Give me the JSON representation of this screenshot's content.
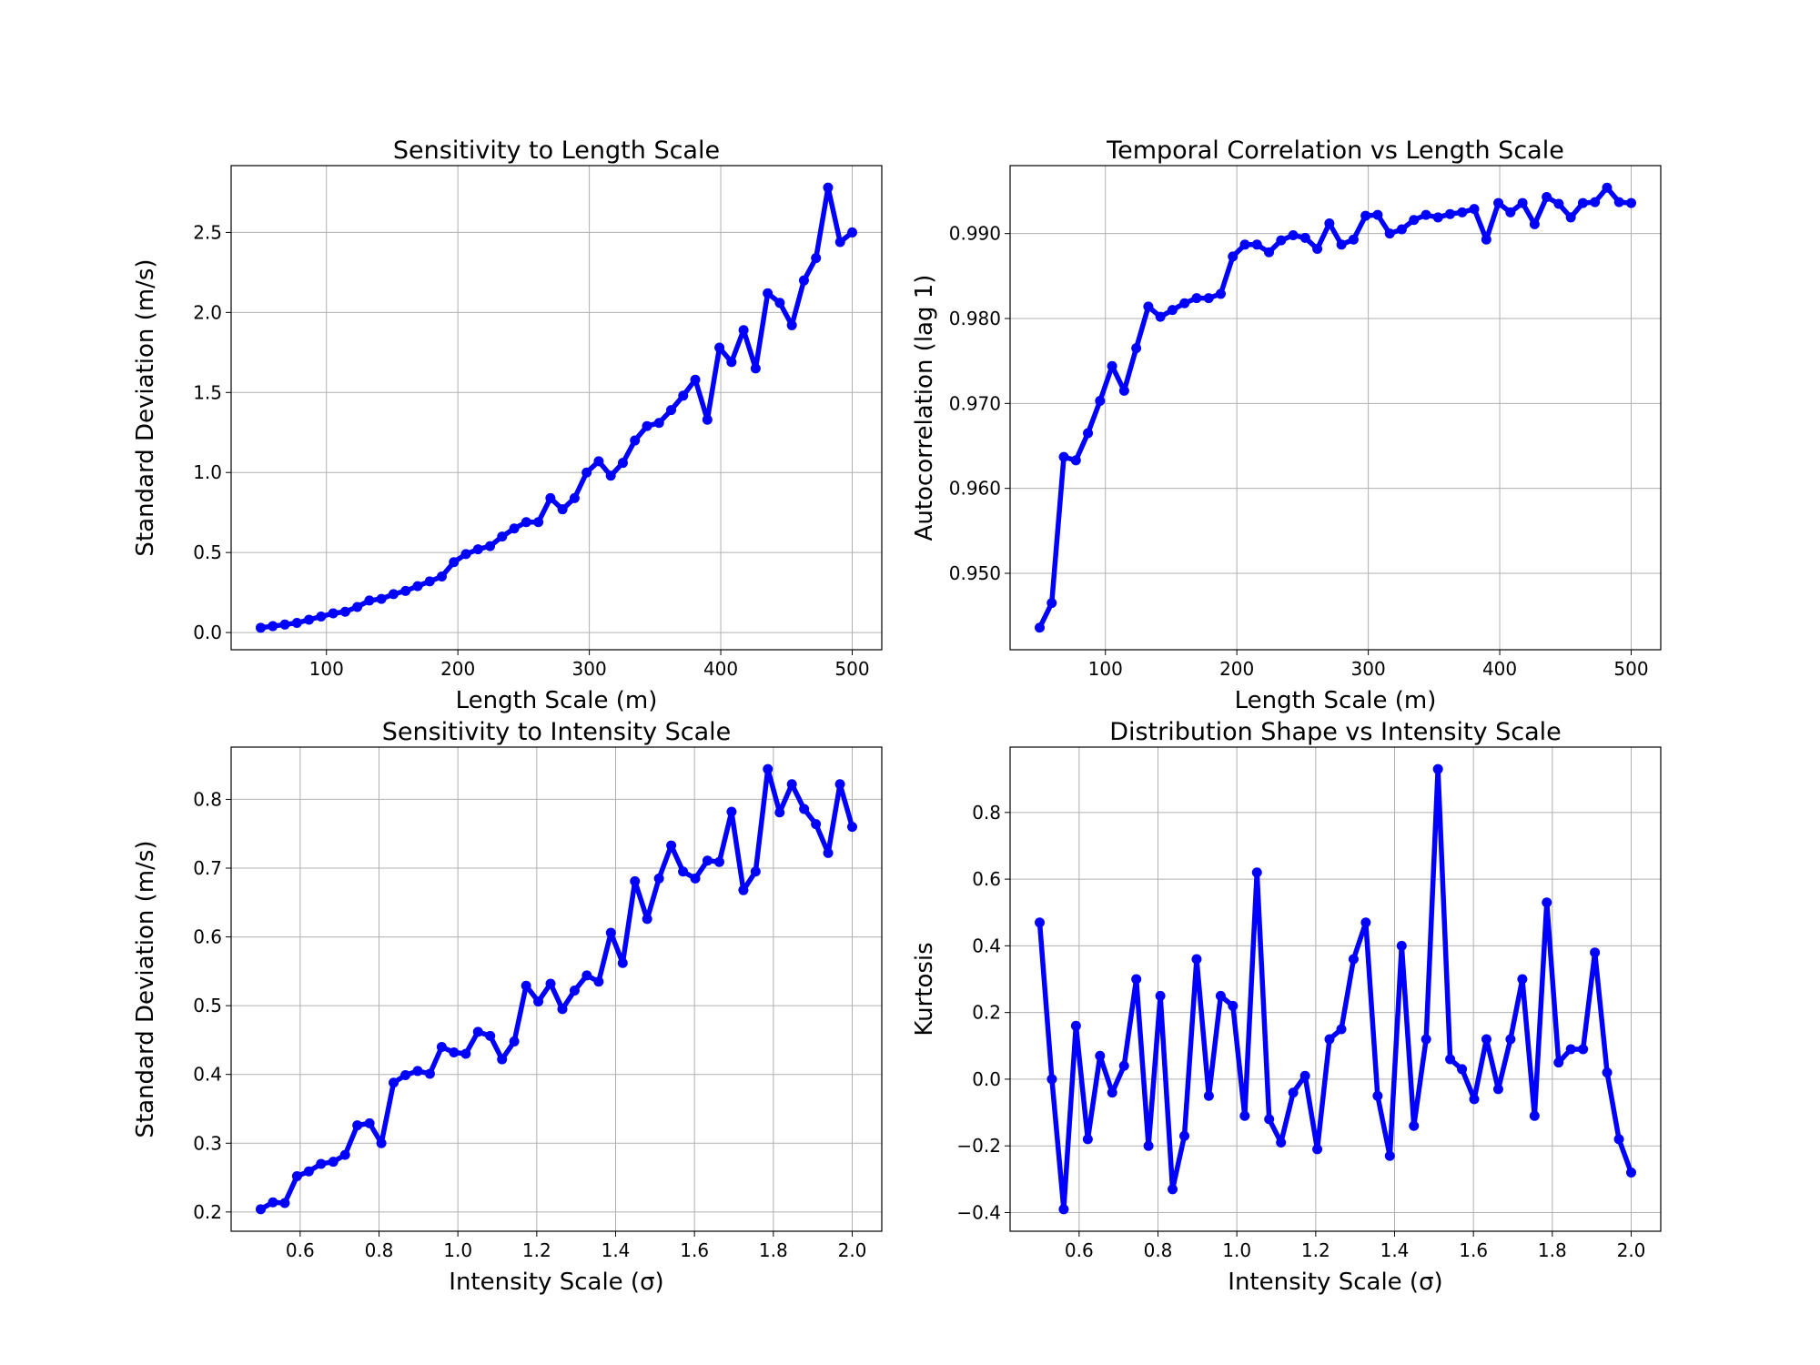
{
  "chart_data": [
    {
      "type": "line",
      "title": "Sensitivity to Length Scale",
      "xlabel": "Length Scale (m)",
      "ylabel": "Standard Deviation (m/s)",
      "color": "#0000ff",
      "grid": true,
      "x": [
        50,
        59.18,
        68.37,
        77.55,
        86.73,
        95.92,
        105.1,
        114.29,
        123.47,
        132.65,
        141.84,
        151.02,
        160.2,
        169.39,
        178.57,
        187.76,
        196.94,
        206.12,
        215.31,
        224.49,
        233.67,
        242.86,
        252.04,
        261.22,
        270.41,
        279.59,
        288.78,
        297.96,
        307.14,
        316.33,
        325.51,
        334.69,
        343.88,
        353.06,
        362.24,
        371.43,
        380.61,
        389.8,
        398.98,
        408.16,
        417.35,
        426.53,
        435.71,
        444.9,
        454.08,
        463.27,
        472.45,
        481.63,
        490.82,
        500
      ],
      "values": [
        0.03,
        0.04,
        0.05,
        0.06,
        0.08,
        0.1,
        0.12,
        0.13,
        0.16,
        0.2,
        0.21,
        0.24,
        0.26,
        0.29,
        0.32,
        0.35,
        0.44,
        0.49,
        0.52,
        0.54,
        0.6,
        0.65,
        0.69,
        0.69,
        0.84,
        0.77,
        0.84,
        1.0,
        1.07,
        0.98,
        1.06,
        1.2,
        1.29,
        1.31,
        1.39,
        1.48,
        1.58,
        1.33,
        1.78,
        1.69,
        1.89,
        1.65,
        2.12,
        2.06,
        1.92,
        2.2,
        2.34,
        2.78,
        2.44,
        2.5
      ],
      "xlim": [
        27.5,
        522.5
      ],
      "ylim": [
        -0.1075,
        2.9175
      ],
      "xticks": [
        100,
        200,
        300,
        400,
        500
      ],
      "yticks": [
        {
          "value": 0,
          "label": "0.0"
        },
        0.5,
        {
          "value": 1,
          "label": "1.0"
        },
        1.5,
        {
          "value": 2,
          "label": "2.0"
        },
        2.5
      ]
    },
    {
      "type": "line",
      "title": "Temporal Correlation vs Length Scale",
      "xlabel": "Length Scale (m)",
      "ylabel": "Autocorrelation (lag 1)",
      "color": "#0000ff",
      "grid": true,
      "x": [
        50,
        59.18,
        68.37,
        77.55,
        86.73,
        95.92,
        105.1,
        114.29,
        123.47,
        132.65,
        141.84,
        151.02,
        160.2,
        169.39,
        178.57,
        187.76,
        196.94,
        206.12,
        215.31,
        224.49,
        233.67,
        242.86,
        252.04,
        261.22,
        270.41,
        279.59,
        288.78,
        297.96,
        307.14,
        316.33,
        325.51,
        334.69,
        343.88,
        353.06,
        362.24,
        371.43,
        380.61,
        389.8,
        398.98,
        408.16,
        417.35,
        426.53,
        435.71,
        444.9,
        454.08,
        463.27,
        472.45,
        481.63,
        490.82,
        500
      ],
      "values": [
        0.9436,
        0.9465,
        0.9637,
        0.9633,
        0.9665,
        0.9703,
        0.9744,
        0.9715,
        0.9765,
        0.9814,
        0.9802,
        0.981,
        0.9818,
        0.9824,
        0.9824,
        0.9829,
        0.9873,
        0.9887,
        0.9887,
        0.9878,
        0.9892,
        0.9898,
        0.9895,
        0.9882,
        0.9912,
        0.9887,
        0.9893,
        0.9921,
        0.9922,
        0.99,
        0.9905,
        0.9916,
        0.9922,
        0.9919,
        0.9923,
        0.9925,
        0.9929,
        0.9893,
        0.9936,
        0.9925,
        0.9936,
        0.9911,
        0.9943,
        0.9935,
        0.9919,
        0.9936,
        0.9937,
        0.9954,
        0.9937,
        0.9936
      ],
      "xlim": [
        27.5,
        522.5
      ],
      "ylim": [
        0.941,
        0.998
      ],
      "xticks": [
        100,
        200,
        300,
        400,
        500
      ],
      "yticks": [
        {
          "value": 0.95,
          "label": "0.950"
        },
        {
          "value": 0.96,
          "label": "0.960"
        },
        {
          "value": 0.97,
          "label": "0.970"
        },
        {
          "value": 0.98,
          "label": "0.980"
        },
        {
          "value": 0.99,
          "label": "0.990"
        }
      ]
    },
    {
      "type": "line",
      "title": "Sensitivity to Intensity Scale",
      "xlabel": "Intensity Scale (σ)",
      "ylabel": "Standard Deviation (m/s)",
      "color": "#0000ff",
      "grid": true,
      "x": [
        0.5,
        0.531,
        0.561,
        0.592,
        0.622,
        0.653,
        0.684,
        0.714,
        0.745,
        0.776,
        0.806,
        0.837,
        0.867,
        0.898,
        0.929,
        0.959,
        0.99,
        1.02,
        1.051,
        1.082,
        1.112,
        1.143,
        1.173,
        1.204,
        1.235,
        1.265,
        1.296,
        1.327,
        1.357,
        1.388,
        1.418,
        1.449,
        1.48,
        1.51,
        1.541,
        1.571,
        1.602,
        1.633,
        1.663,
        1.694,
        1.724,
        1.755,
        1.786,
        1.816,
        1.847,
        1.878,
        1.908,
        1.939,
        1.969,
        2.0
      ],
      "values": [
        0.204,
        0.214,
        0.213,
        0.252,
        0.259,
        0.27,
        0.273,
        0.283,
        0.326,
        0.329,
        0.3,
        0.388,
        0.399,
        0.405,
        0.401,
        0.44,
        0.432,
        0.43,
        0.462,
        0.456,
        0.422,
        0.448,
        0.529,
        0.506,
        0.532,
        0.495,
        0.522,
        0.544,
        0.535,
        0.606,
        0.562,
        0.681,
        0.626,
        0.685,
        0.733,
        0.695,
        0.685,
        0.711,
        0.709,
        0.782,
        0.668,
        0.695,
        0.844,
        0.781,
        0.822,
        0.786,
        0.764,
        0.722,
        0.822,
        0.76
      ],
      "xlim": [
        0.425,
        2.075
      ],
      "ylim": [
        0.172,
        0.876
      ],
      "xticks": [
        0.6,
        0.8,
        {
          "value": 1,
          "label": "1.0"
        },
        1.2,
        1.4,
        1.6,
        1.8,
        {
          "value": 2,
          "label": "2.0"
        }
      ],
      "yticks": [
        0.2,
        0.3,
        0.4,
        0.5,
        0.6,
        0.7,
        0.8
      ]
    },
    {
      "type": "line",
      "title": "Distribution Shape vs Intensity Scale",
      "xlabel": "Intensity Scale (σ)",
      "ylabel": "Kurtosis",
      "color": "#0000ff",
      "grid": true,
      "x": [
        0.5,
        0.531,
        0.561,
        0.592,
        0.622,
        0.653,
        0.684,
        0.714,
        0.745,
        0.776,
        0.806,
        0.837,
        0.867,
        0.898,
        0.929,
        0.959,
        0.99,
        1.02,
        1.051,
        1.082,
        1.112,
        1.143,
        1.173,
        1.204,
        1.235,
        1.265,
        1.296,
        1.327,
        1.357,
        1.388,
        1.418,
        1.449,
        1.48,
        1.51,
        1.541,
        1.571,
        1.602,
        1.633,
        1.663,
        1.694,
        1.724,
        1.755,
        1.786,
        1.816,
        1.847,
        1.878,
        1.908,
        1.939,
        1.969,
        2.0
      ],
      "values": [
        0.47,
        0.0,
        -0.39,
        0.16,
        -0.18,
        0.07,
        -0.04,
        0.04,
        0.3,
        -0.2,
        0.25,
        -0.33,
        -0.17,
        0.36,
        -0.05,
        0.25,
        0.22,
        -0.11,
        0.62,
        -0.12,
        -0.19,
        -0.04,
        0.01,
        -0.21,
        0.12,
        0.15,
        0.36,
        0.47,
        -0.05,
        -0.23,
        0.4,
        -0.14,
        0.12,
        0.93,
        0.06,
        0.03,
        -0.06,
        0.12,
        -0.03,
        0.12,
        0.3,
        -0.11,
        0.53,
        0.05,
        0.09,
        0.09,
        0.38,
        0.02,
        -0.18,
        -0.28
      ],
      "xlim": [
        0.425,
        2.075
      ],
      "ylim": [
        -0.456,
        0.996
      ],
      "xticks": [
        0.6,
        0.8,
        {
          "value": 1,
          "label": "1.0"
        },
        1.2,
        1.4,
        1.6,
        1.8,
        {
          "value": 2,
          "label": "2.0"
        }
      ],
      "yticks": [
        {
          "value": -0.4,
          "label": "−0.4"
        },
        {
          "value": -0.2,
          "label": "−0.2"
        },
        {
          "value": 0,
          "label": "0.0"
        },
        0.2,
        0.4,
        0.6,
        0.8
      ]
    }
  ]
}
